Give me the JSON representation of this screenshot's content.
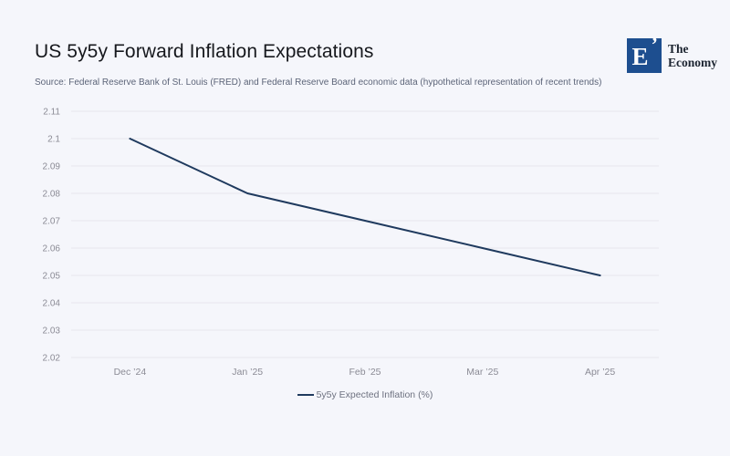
{
  "header": {
    "title": "US 5y5y Forward Inflation Expectations",
    "source": "Source: Federal Reserve Bank of St. Louis (FRED) and Federal Reserve Board economic data (hypothetical representation of recent trends)"
  },
  "logo": {
    "mark": "E",
    "accent": "’",
    "name_line1": "The",
    "name_line2": "Economy"
  },
  "colors": {
    "background": "#f5f6fb",
    "line": "#1f3a5e",
    "logo_blue": "#1d4e8f",
    "grid": "#e6e7ee",
    "axis_text": "#8b8b95",
    "source_text": "#5c6478",
    "legend_text": "#6e7280"
  },
  "chart_data": {
    "type": "line",
    "title": "US 5y5y Forward Inflation Expectations",
    "categories": [
      "Dec ’24",
      "Jan ’25",
      "Feb ’25",
      "Mar ’25",
      "Apr ’25"
    ],
    "series": [
      {
        "name": "5y5y Expected Inflation (%)",
        "values": [
          2.1,
          2.08,
          2.07,
          2.06,
          2.05
        ]
      }
    ],
    "xlabel": "",
    "ylabel": "",
    "ylim": [
      2.02,
      2.11
    ],
    "ytick_step": 0.01,
    "grid": "horizontal",
    "legend_position": "bottom",
    "line_color": "#1f3a5e",
    "grid_color": "#e6e7ee",
    "axis_label_color": "#8b8b95"
  }
}
